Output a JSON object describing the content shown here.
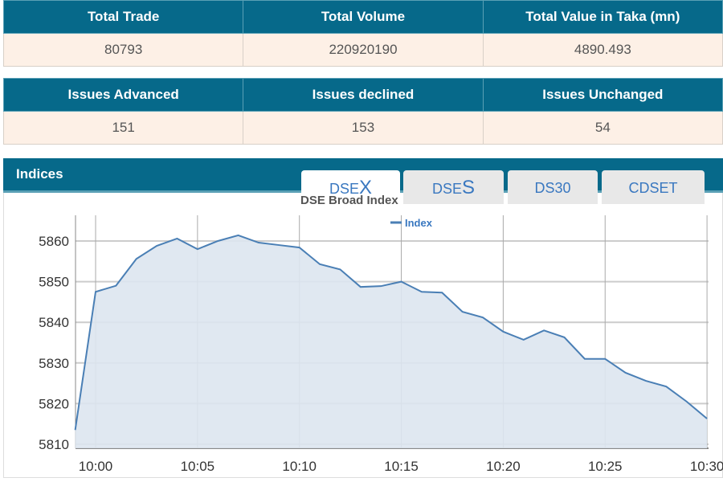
{
  "summary1": {
    "headers": [
      "Total Trade",
      "Total Volume",
      "Total Value in Taka (mn)"
    ],
    "values": [
      "80793",
      "220920190",
      "4890.493"
    ]
  },
  "summary2": {
    "headers": [
      "Issues Advanced",
      "Issues declined",
      "Issues Unchanged"
    ],
    "values": [
      "151",
      "153",
      "54"
    ]
  },
  "indices": {
    "title": "Indices",
    "tabs": [
      {
        "prefix": "DSE",
        "suffix": "X"
      },
      {
        "prefix": "DSE",
        "suffix": "S"
      },
      {
        "prefix": "DS30",
        "suffix": ""
      },
      {
        "prefix": "CDSET",
        "suffix": ""
      }
    ]
  },
  "colors": {
    "header": "#06698a",
    "line": "#4a7fb5",
    "fill": "#dde6f0"
  },
  "chart_data": {
    "type": "area",
    "title": "DSE Broad Index",
    "legend": [
      "Index"
    ],
    "legend_position": "top-center",
    "x": [
      "09:59",
      "10:00",
      "10:01",
      "10:02",
      "10:03",
      "10:04",
      "10:05",
      "10:06",
      "10:07",
      "10:08",
      "10:09",
      "10:10",
      "10:11",
      "10:12",
      "10:13",
      "10:14",
      "10:15",
      "10:16",
      "10:17",
      "10:18",
      "10:19",
      "10:20",
      "10:21",
      "10:22",
      "10:23",
      "10:24",
      "10:25",
      "10:26",
      "10:27",
      "10:28",
      "10:29",
      "10:30"
    ],
    "values": [
      5813.5,
      5847.5,
      5849,
      5855.6,
      5858.8,
      5860.6,
      5858,
      5860,
      5861.4,
      5859.6,
      5859,
      5858.4,
      5854.3,
      5853,
      5848.7,
      5848.9,
      5850,
      5847.5,
      5847.3,
      5842.6,
      5841.2,
      5837.7,
      5835.7,
      5838,
      5836.3,
      5831,
      5831,
      5827.6,
      5825.6,
      5824.2,
      5820.5,
      5816.3
    ],
    "xticks": [
      "10:00",
      "10:05",
      "10:10",
      "10:15",
      "10:20",
      "10:25",
      "10:30"
    ],
    "yticks": [
      5810,
      5820,
      5830,
      5840,
      5850,
      5860
    ],
    "ylim": [
      5809,
      5866
    ],
    "grid": true
  }
}
